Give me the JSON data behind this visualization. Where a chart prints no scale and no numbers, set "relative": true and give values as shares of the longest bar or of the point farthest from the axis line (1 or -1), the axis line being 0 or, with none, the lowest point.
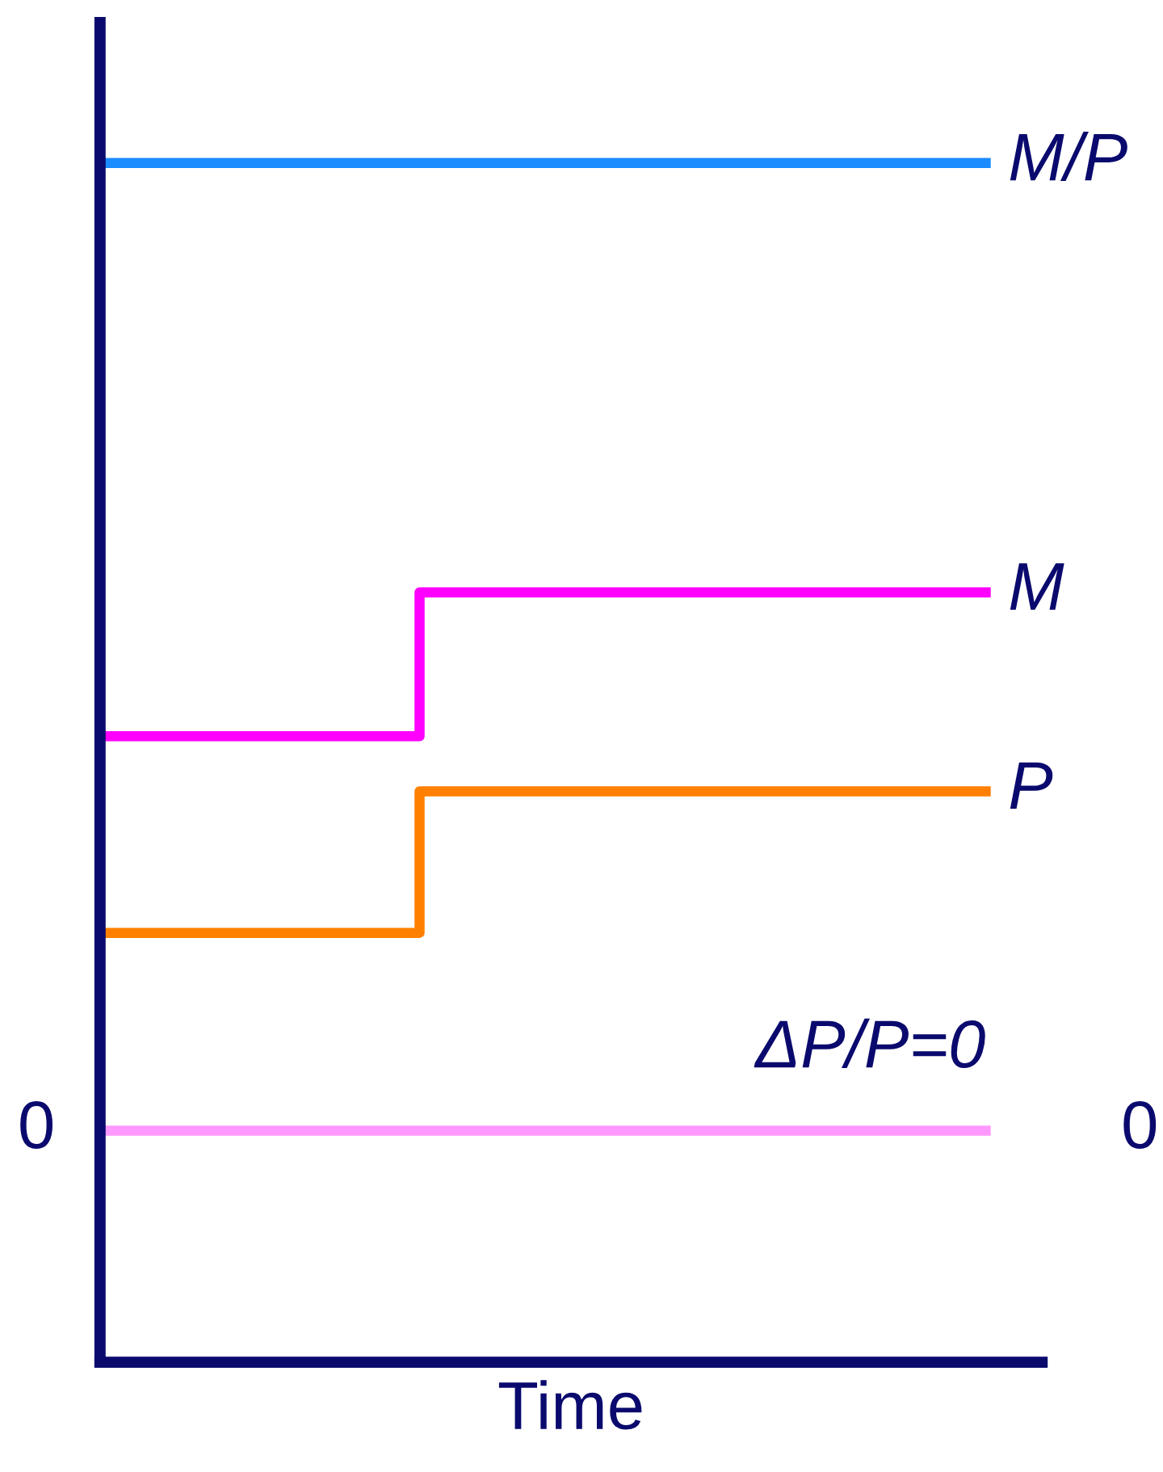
{
  "chart_data": {
    "type": "step",
    "relative": true,
    "xlabel": "Time",
    "categories": [
      null,
      null,
      null,
      null,
      null,
      null,
      null,
      null,
      null,
      null,
      null,
      null,
      null,
      null,
      null
    ],
    "series": [
      {
        "name": "M/P",
        "color": "#1a8cff",
        "values": [
          1,
          1,
          1,
          1,
          1,
          1,
          1,
          1,
          1,
          1,
          1,
          1,
          1,
          1,
          1
        ]
      },
      {
        "name": "M",
        "color": "#ff00ff",
        "values": [
          0.522,
          0.522,
          0.522,
          0.522,
          0.522,
          0.642,
          0.642,
          0.642,
          0.642,
          0.642,
          0.642,
          0.642,
          0.642,
          0.642,
          0.642
        ]
      },
      {
        "name": "P",
        "color": "#ff8000",
        "values": [
          0.358,
          0.358,
          0.358,
          0.358,
          0.358,
          0.476,
          0.476,
          0.476,
          0.476,
          0.476,
          0.476,
          0.476,
          0.476,
          0.476,
          0.476
        ]
      },
      {
        "name": "ΔP/P=0",
        "color": "#ff99ff",
        "values": [
          0.193,
          0.193,
          0.193,
          0.193,
          0.193,
          0.193,
          0.193,
          0.193,
          0.193,
          0.193,
          0.193,
          0.193,
          0.193,
          0.193,
          0.193
        ]
      }
    ],
    "annotations": [
      "0",
      "0"
    ],
    "legend": false,
    "marker": "none",
    "line_style": "solid"
  }
}
